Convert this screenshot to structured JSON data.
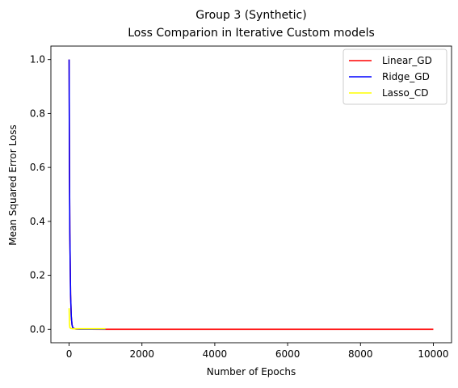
{
  "chart_data": {
    "type": "line",
    "title": "Group 3 (Synthetic)",
    "subtitle": "Loss Comparion in Iterative Custom models",
    "xlabel": "Number of Epochs",
    "ylabel": "Mean Squared Error Loss",
    "xlim": [
      -500,
      10500
    ],
    "ylim": [
      -0.05,
      1.05
    ],
    "xticks": [
      0,
      2000,
      4000,
      6000,
      8000,
      10000
    ],
    "xtick_labels": [
      "0",
      "2000",
      "4000",
      "6000",
      "8000",
      "10000"
    ],
    "yticks": [
      0.0,
      0.2,
      0.4,
      0.6,
      0.8,
      1.0
    ],
    "ytick_labels": [
      "0.0",
      "0.2",
      "0.4",
      "0.6",
      "0.8",
      "1.0"
    ],
    "grid": false,
    "legend_position": "top-right",
    "series": [
      {
        "name": "Linear_GD",
        "color": "#ff0000",
        "x": [
          0,
          10,
          20,
          40,
          60,
          80,
          100,
          150,
          200,
          300,
          400,
          600,
          1000,
          2000,
          4000,
          6000,
          8000,
          10000
        ],
        "y": [
          1.0,
          0.6,
          0.36,
          0.13,
          0.047,
          0.017,
          0.006,
          0.002,
          0.001,
          0.0005,
          0.0003,
          0.0002,
          0.0001,
          0.0001,
          0.0001,
          0.0001,
          0.0001,
          0.0001
        ]
      },
      {
        "name": "Ridge_GD",
        "color": "#0000ff",
        "x": [
          0,
          10,
          20,
          40,
          60,
          80,
          100,
          150,
          200,
          300,
          400,
          600,
          800,
          1000
        ],
        "y": [
          1.0,
          0.6,
          0.36,
          0.13,
          0.047,
          0.017,
          0.006,
          0.002,
          0.001,
          0.0005,
          0.0003,
          0.0002,
          0.0002,
          0.0002
        ]
      },
      {
        "name": "Lasso_CD",
        "color": "#ffff00",
        "x": [
          0,
          5,
          10,
          20,
          50,
          100,
          200,
          500,
          1000
        ],
        "y": [
          0.078,
          0.05,
          0.02,
          0.006,
          0.003,
          0.002,
          0.002,
          0.002,
          0.002
        ]
      }
    ]
  }
}
